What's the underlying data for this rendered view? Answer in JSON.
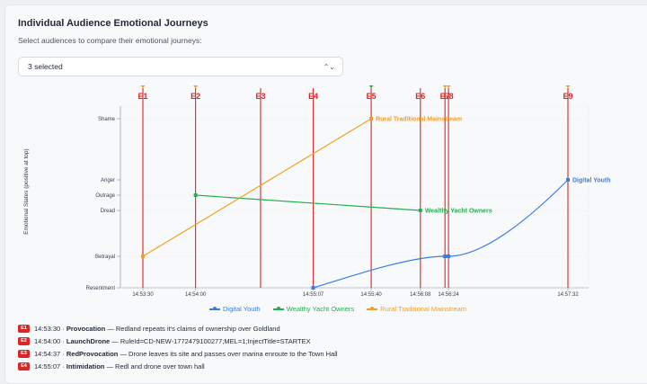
{
  "header": {
    "title": "Individual Audience Emotional Journeys",
    "subtitle": "Select audiences to compare their emotional journeys:",
    "select_value": "3 selected"
  },
  "colors": {
    "event": "#dc2626",
    "digital_youth": "#3b7ddd",
    "wealthy_yacht": "#22b050",
    "rural": "#f0a020"
  },
  "chart_data": {
    "type": "line",
    "ylabel": "Emotional States (positive at top)",
    "categories": [
      "Resentment",
      "Betrayal",
      "Dread",
      "Outrage",
      "Anger",
      "Shame"
    ],
    "x_ticks": [
      "14:53:30",
      "14:54:00",
      "14:55:07",
      "14:55:40",
      "14:56:08",
      "14:56:24",
      "14:57:32"
    ],
    "x_range_seconds": [
      0,
      242
    ],
    "events": [
      {
        "label": "E1",
        "t": 0
      },
      {
        "label": "E2",
        "t": 30
      },
      {
        "label": "E3",
        "t": 67
      },
      {
        "label": "E4",
        "t": 97
      },
      {
        "label": "E5",
        "t": 130
      },
      {
        "label": "E6",
        "t": 158
      },
      {
        "label": "E7",
        "t": 172
      },
      {
        "label": "E8",
        "t": 174
      },
      {
        "label": "E9",
        "t": 242
      }
    ],
    "series": [
      {
        "name": "Digital Youth",
        "color": "#3b7ddd",
        "points": [
          [
            97,
            0
          ],
          [
            172,
            1
          ],
          [
            174,
            1
          ],
          [
            242,
            4
          ]
        ]
      },
      {
        "name": "Wealthy Yacht Owners",
        "color": "#22b050",
        "points": [
          [
            30,
            3
          ],
          [
            158,
            2
          ]
        ]
      },
      {
        "name": "Rural Traditional Mainstream",
        "color": "#f0a020",
        "points": [
          [
            0,
            1
          ],
          [
            130,
            5
          ]
        ]
      }
    ]
  },
  "events_list": [
    {
      "badge": "E1",
      "time": "14:53:30",
      "name": "Provocation",
      "desc": "Redland repeats it's claims of ownership over Goldland"
    },
    {
      "badge": "E2",
      "time": "14:54:00",
      "name": "LaunchDrone",
      "desc": "RuleId=CD-NEW-1772479100277;MEL=1;InjectTitle=STARTEX"
    },
    {
      "badge": "E3",
      "time": "14:54:37",
      "name": "RedProvocation",
      "desc": "Drone leaves its site and passes over marina enroute to the Town Hall"
    },
    {
      "badge": "E4",
      "time": "14:55:07",
      "name": "Intimidation",
      "desc": "Redl and drone over town hall"
    }
  ],
  "separator": " · ",
  "dash": " — "
}
